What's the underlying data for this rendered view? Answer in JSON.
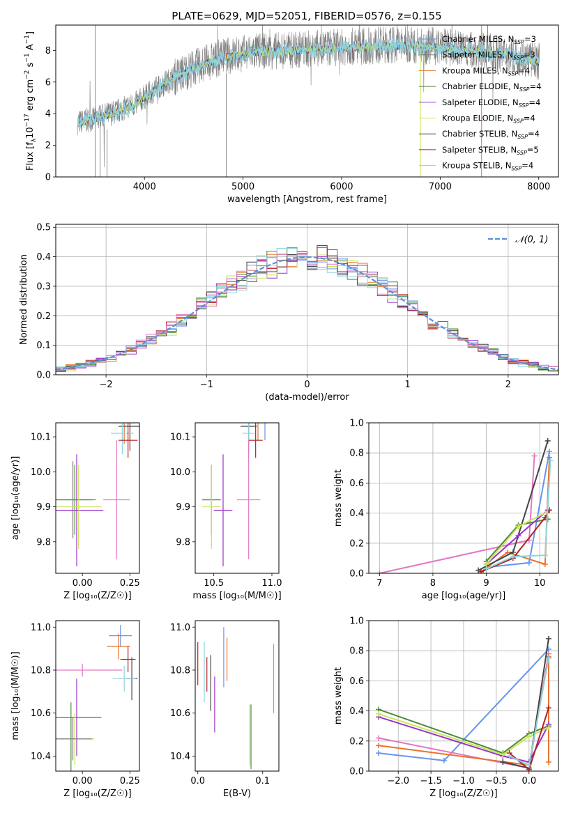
{
  "figure_title": "PLATE=0629, MJD=52051, FIBERID=0576, z=0.155",
  "colors": {
    "chabrier_miles": "#6495ed",
    "salpeter_miles": "#808080",
    "kroupa_miles": "#e8722c",
    "chabrier_elodie": "#4e8b3a",
    "salpeter_elodie": "#9932cc",
    "kroupa_elodie": "#c8e65a",
    "chabrier_stelib": "#454545",
    "salpeter_stelib": "#b22222",
    "kroupa_stelib": "#8fd3e0",
    "pink": "#e377c2",
    "gaussian": "#5b8fd6"
  },
  "chart_data": [
    {
      "id": "spectrum",
      "type": "line",
      "title": "PLATE=0629, MJD=52051, FIBERID=0576, z=0.155",
      "xlabel": "wavelength [Angstrom, rest frame]",
      "ylabel_parts": [
        "Flux [f",
        "λ",
        "10",
        "−17",
        " erg cm",
        "−2",
        " s",
        "−1",
        " A",
        "−1",
        "]"
      ],
      "xlim": [
        3100,
        8200
      ],
      "ylim": [
        0,
        9.6
      ],
      "xticks": [
        "4000",
        "5000",
        "6000",
        "7000",
        "8000"
      ],
      "yticks": [
        "0",
        "2",
        "4",
        "6",
        "8"
      ],
      "grid": false,
      "legend_position": "right",
      "legend": [
        {
          "text": "Chabrier MILES, N",
          "sub": "SSP",
          "tail": "=3",
          "color": "#6495ed"
        },
        {
          "text": "Salpeter MILES, N",
          "sub": "SSP",
          "tail": "=3",
          "color": "#808080"
        },
        {
          "text": "Kroupa MILES, N",
          "sub": "SSP",
          "tail": "=4",
          "color": "#e8722c"
        },
        {
          "text": "Chabrier ELODIE, N",
          "sub": "SSP",
          "tail": "=4",
          "color": "#4e8b3a"
        },
        {
          "text": "Salpeter ELODIE, N",
          "sub": "SSP",
          "tail": "=4",
          "color": "#9932cc"
        },
        {
          "text": "Kroupa ELODIE, N",
          "sub": "SSP",
          "tail": "=4",
          "color": "#c8e65a"
        },
        {
          "text": "Chabrier STELIB, N",
          "sub": "SSP",
          "tail": "=4",
          "color": "#454545"
        },
        {
          "text": "Salpeter STELIB, N",
          "sub": "SSP",
          "tail": "=5",
          "color": "#b22222"
        },
        {
          "text": "Kroupa STELIB, N",
          "sub": "SSP",
          "tail": "=4",
          "color": "#8fd3e0"
        }
      ],
      "trend_wavelength": [
        3300,
        3500,
        3700,
        3900,
        4100,
        4300,
        4500,
        4800,
        5100,
        5400,
        5700,
        6000,
        6300,
        6600,
        6900,
        7200,
        7500,
        7800,
        8000
      ],
      "trend_flux": [
        3.4,
        3.7,
        4.1,
        4.6,
        5.5,
        6.3,
        6.9,
        7.6,
        7.9,
        8.0,
        8.1,
        8.2,
        8.3,
        8.35,
        8.3,
        8.1,
        7.9,
        7.6,
        7.3
      ]
    },
    {
      "id": "residuals",
      "type": "histogram",
      "xlabel": "(data-model)/error",
      "ylabel": "Normed distribution",
      "xlim": [
        -2.5,
        2.5
      ],
      "ylim": [
        0,
        0.51
      ],
      "xticks": [
        "−2",
        "−1",
        "0",
        "1",
        "2"
      ],
      "yticks": [
        "0.0",
        "0.1",
        "0.2",
        "0.3",
        "0.4",
        "0.5"
      ],
      "grid": true,
      "legend_label": "𝒩(0, 1)",
      "legend_position": "top-right",
      "bin_width": 0.1
    },
    {
      "id": "age_vs_Z",
      "type": "errorbar",
      "xlabel": "Z [log₁₀(Z/Z☉)]",
      "ylabel": "age  [log₁₀(age/yr)]",
      "xlim": [
        -0.14,
        0.3
      ],
      "ylim": [
        9.71,
        10.14
      ],
      "xticks": [
        "0.00",
        "0.25"
      ],
      "yticks": [
        "9.8",
        "9.9",
        "10.0",
        "10.1"
      ],
      "points": [
        {
          "x": 0.21,
          "y": 10.15,
          "xerr": 0.06,
          "yerr": 0.06,
          "color": "#6495ed"
        },
        {
          "x": 0.22,
          "y": 10.14,
          "xerr": 0.06,
          "yerr": 0.06,
          "color": "#e8722c"
        },
        {
          "x": 0.25,
          "y": 10.13,
          "xerr": 0.06,
          "yerr": 0.07,
          "color": "#454545"
        },
        {
          "x": 0.21,
          "y": 10.11,
          "xerr": 0.06,
          "yerr": 0.06,
          "color": "#8fd3e0"
        },
        {
          "x": 0.24,
          "y": 10.09,
          "xerr": 0.05,
          "yerr": 0.05,
          "color": "#b22222"
        },
        {
          "x": 0.18,
          "y": 9.92,
          "xerr": 0.07,
          "yerr": 0.17,
          "color": "#e377c2"
        },
        {
          "x": -0.05,
          "y": 9.92,
          "xerr": 0.1,
          "yerr": 0.11,
          "color": "#808080"
        },
        {
          "x": -0.04,
          "y": 9.92,
          "xerr": 0.11,
          "yerr": 0.1,
          "color": "#4e8b3a"
        },
        {
          "x": -0.03,
          "y": 9.89,
          "xerr": 0.14,
          "yerr": 0.16,
          "color": "#9932cc"
        },
        {
          "x": -0.02,
          "y": 9.9,
          "xerr": 0.12,
          "yerr": 0.12,
          "color": "#c8e65a"
        }
      ]
    },
    {
      "id": "age_vs_mass",
      "type": "errorbar",
      "xlabel": "mass [log₁₀(M/M☉)]",
      "ylabel": "",
      "xlim": [
        10.34,
        11.06
      ],
      "ylim": [
        9.71,
        10.14
      ],
      "xticks": [
        "10.5",
        "11.0"
      ],
      "yticks": [
        "9.8",
        "9.9",
        "10.0",
        "10.1"
      ],
      "points": [
        {
          "x": 10.94,
          "y": 10.15,
          "xerr": 0.08,
          "yerr": 0.06,
          "color": "#6495ed"
        },
        {
          "x": 10.88,
          "y": 10.14,
          "xerr": 0.08,
          "yerr": 0.05,
          "color": "#e8722c"
        },
        {
          "x": 10.8,
          "y": 10.13,
          "xerr": 0.07,
          "yerr": 0.07,
          "color": "#454545"
        },
        {
          "x": 10.8,
          "y": 10.11,
          "xerr": 0.05,
          "yerr": 0.07,
          "color": "#8fd3e0"
        },
        {
          "x": 10.86,
          "y": 10.09,
          "xerr": 0.06,
          "yerr": 0.05,
          "color": "#b22222"
        },
        {
          "x": 10.8,
          "y": 9.92,
          "xerr": 0.1,
          "yerr": 0.17,
          "color": "#e377c2"
        },
        {
          "x": 10.48,
          "y": 9.92,
          "xerr": 0.08,
          "yerr": 0.1,
          "color": "#808080"
        },
        {
          "x": 10.48,
          "y": 9.92,
          "xerr": 0.08,
          "yerr": 0.1,
          "color": "#4e8b3a"
        },
        {
          "x": 10.58,
          "y": 9.89,
          "xerr": 0.08,
          "yerr": 0.16,
          "color": "#9932cc"
        },
        {
          "x": 10.48,
          "y": 9.9,
          "xerr": 0.08,
          "yerr": 0.12,
          "color": "#c8e65a"
        }
      ]
    },
    {
      "id": "weight_vs_age",
      "type": "line",
      "xlabel": "age  [log₁₀(age/yr)]",
      "ylabel": "mass weight",
      "xlim": [
        6.8,
        10.35
      ],
      "ylim": [
        0,
        1
      ],
      "xticks": [
        "7",
        "8",
        "9",
        "10"
      ],
      "yticks": [
        "0.0",
        "0.2",
        "0.4",
        "0.6",
        "0.8",
        "1.0"
      ],
      "grid": true,
      "series": [
        {
          "color": "#e377c2",
          "x": [
            7.0,
            9.8,
            9.9
          ],
          "y": [
            0.0,
            0.22,
            0.78
          ]
        },
        {
          "color": "#6495ed",
          "x": [
            9.0,
            9.8,
            10.18
          ],
          "y": [
            0.04,
            0.07,
            0.81
          ]
        },
        {
          "color": "#e8722c",
          "x": [
            8.9,
            9.4,
            10.1,
            10.18
          ],
          "y": [
            0.01,
            0.14,
            0.06,
            0.77
          ]
        },
        {
          "color": "#454545",
          "x": [
            8.85,
            9.5,
            10.15
          ],
          "y": [
            0.02,
            0.14,
            0.88
          ]
        },
        {
          "color": "#4e8b3a",
          "x": [
            9.0,
            9.6,
            10.15
          ],
          "y": [
            0.08,
            0.32,
            0.36
          ]
        },
        {
          "color": "#9932cc",
          "x": [
            9.0,
            9.6,
            10.15
          ],
          "y": [
            0.06,
            0.25,
            0.42
          ]
        },
        {
          "color": "#c8e65a",
          "x": [
            9.0,
            9.6,
            10.15
          ],
          "y": [
            0.06,
            0.31,
            0.41
          ]
        },
        {
          "color": "#b22222",
          "x": [
            8.9,
            9.5,
            10.1,
            10.18
          ],
          "y": [
            0.01,
            0.1,
            0.37,
            0.42
          ]
        },
        {
          "color": "#8fd3e0",
          "x": [
            9.0,
            9.5,
            10.1,
            10.2
          ],
          "y": [
            0.03,
            0.11,
            0.12,
            0.75
          ]
        }
      ]
    },
    {
      "id": "mass_vs_Z",
      "type": "errorbar",
      "xlabel": "Z [log₁₀(Z/Z☉)]",
      "ylabel": "mass [log₁₀(M/M☉)]",
      "xlim": [
        -0.14,
        0.3
      ],
      "ylim": [
        10.33,
        11.03
      ],
      "xticks": [
        "0.00",
        "0.25"
      ],
      "yticks": [
        "10.4",
        "10.6",
        "10.8",
        "11.0"
      ],
      "points": [
        {
          "x": 0.2,
          "y": 10.96,
          "xerr": 0.06,
          "yerr": 0.05,
          "color": "#6495ed"
        },
        {
          "x": 0.19,
          "y": 10.91,
          "xerr": 0.06,
          "yerr": 0.06,
          "color": "#e8722c"
        },
        {
          "x": 0.24,
          "y": 10.85,
          "xerr": 0.04,
          "yerr": 0.06,
          "color": "#b22222"
        },
        {
          "x": 0.26,
          "y": 10.76,
          "xerr": 0.03,
          "yerr": 0.1,
          "color": "#454545"
        },
        {
          "x": 0.22,
          "y": 10.76,
          "xerr": 0.06,
          "yerr": 0.06,
          "color": "#8fd3e0"
        },
        {
          "x": 0.0,
          "y": 10.8,
          "xerr": 0.21,
          "yerr": 0.03,
          "color": "#e377c2"
        },
        {
          "x": -0.03,
          "y": 10.58,
          "xerr": 0.13,
          "yerr": 0.18,
          "color": "#9932cc"
        },
        {
          "x": -0.06,
          "y": 10.48,
          "xerr": 0.12,
          "yerr": 0.17,
          "color": "#4e8b3a"
        },
        {
          "x": -0.04,
          "y": 10.48,
          "xerr": 0.1,
          "yerr": 0.12,
          "color": "#c8e65a"
        },
        {
          "x": -0.05,
          "y": 10.48,
          "xerr": 0.1,
          "yerr": 0.1,
          "color": "#808080"
        }
      ]
    },
    {
      "id": "mass_vs_ebv",
      "type": "errorbar",
      "xlabel": "E(B-V)",
      "ylabel": "",
      "xlim": [
        -0.004,
        0.125
      ],
      "ylim": [
        10.33,
        11.03
      ],
      "xticks": [
        "0.0",
        "0.1"
      ],
      "yticks": [
        "10.4",
        "10.6",
        "10.8",
        "11.0"
      ],
      "points": [
        {
          "x": 0.0,
          "y": 10.83,
          "yerr": 0.1,
          "color": "#b22222"
        },
        {
          "x": 0.01,
          "y": 10.79,
          "yerr": 0.14,
          "color": "#8fd3e0"
        },
        {
          "x": 0.014,
          "y": 10.78,
          "yerr": 0.08,
          "color": "#b22222"
        },
        {
          "x": 0.02,
          "y": 10.74,
          "yerr": 0.13,
          "color": "#454545"
        },
        {
          "x": 0.026,
          "y": 10.64,
          "yerr": 0.13,
          "color": "#9932cc"
        },
        {
          "x": 0.04,
          "y": 10.86,
          "yerr": 0.14,
          "color": "#6495ed"
        },
        {
          "x": 0.045,
          "y": 10.85,
          "yerr": 0.1,
          "color": "#e8722c"
        },
        {
          "x": 0.08,
          "y": 10.5,
          "yerr": 0.14,
          "color": "#c8e65a"
        },
        {
          "x": 0.082,
          "y": 10.49,
          "yerr": 0.15,
          "color": "#4e8b3a"
        },
        {
          "x": 0.117,
          "y": 10.76,
          "yerr": 0.16,
          "color": "#e377c2"
        }
      ]
    },
    {
      "id": "weight_vs_Z",
      "type": "line",
      "xlabel": "Z [log₁₀(Z/Z☉)]",
      "ylabel": "mass weight",
      "xlim": [
        -2.45,
        0.45
      ],
      "ylim": [
        0,
        1
      ],
      "xticks": [
        "−2.0",
        "−1.5",
        "−1.0",
        "−0.5",
        "0.0"
      ],
      "yticks": [
        "0.0",
        "0.2",
        "0.4",
        "0.6",
        "0.8",
        "1.0"
      ],
      "grid": true,
      "series": [
        {
          "color": "#6495ed",
          "x": [
            -2.3,
            -1.3,
            0.3
          ],
          "y": [
            0.12,
            0.07,
            0.81
          ]
        },
        {
          "color": "#e377c2",
          "x": [
            -2.3,
            0.0,
            0.3
          ],
          "y": [
            0.22,
            0.02,
            0.78
          ]
        },
        {
          "color": "#e8722c",
          "x": [
            -2.3,
            0.0,
            0.3,
            0.3
          ],
          "y": [
            0.17,
            0.04,
            0.76,
            0.06
          ]
        },
        {
          "color": "#4e8b3a",
          "x": [
            -2.3,
            -0.4,
            0.0,
            0.3
          ],
          "y": [
            0.41,
            0.12,
            0.25,
            0.3
          ]
        },
        {
          "color": "#9932cc",
          "x": [
            -2.3,
            -0.4,
            0.0,
            0.3
          ],
          "y": [
            0.36,
            0.1,
            0.06,
            0.31
          ]
        },
        {
          "color": "#c8e65a",
          "x": [
            -2.3,
            -0.4,
            0.0,
            0.3
          ],
          "y": [
            0.38,
            0.11,
            0.23,
            0.29
          ]
        },
        {
          "color": "#454545",
          "x": [
            -0.4,
            0.0,
            0.3
          ],
          "y": [
            0.06,
            0.02,
            0.88
          ]
        },
        {
          "color": "#b22222",
          "x": [
            -0.3,
            0.0,
            0.3
          ],
          "y": [
            0.12,
            0.01,
            0.42
          ]
        },
        {
          "color": "#8fd3e0",
          "x": [
            -0.3,
            0.0,
            0.3
          ],
          "y": [
            0.1,
            0.04,
            0.75
          ]
        }
      ]
    }
  ]
}
